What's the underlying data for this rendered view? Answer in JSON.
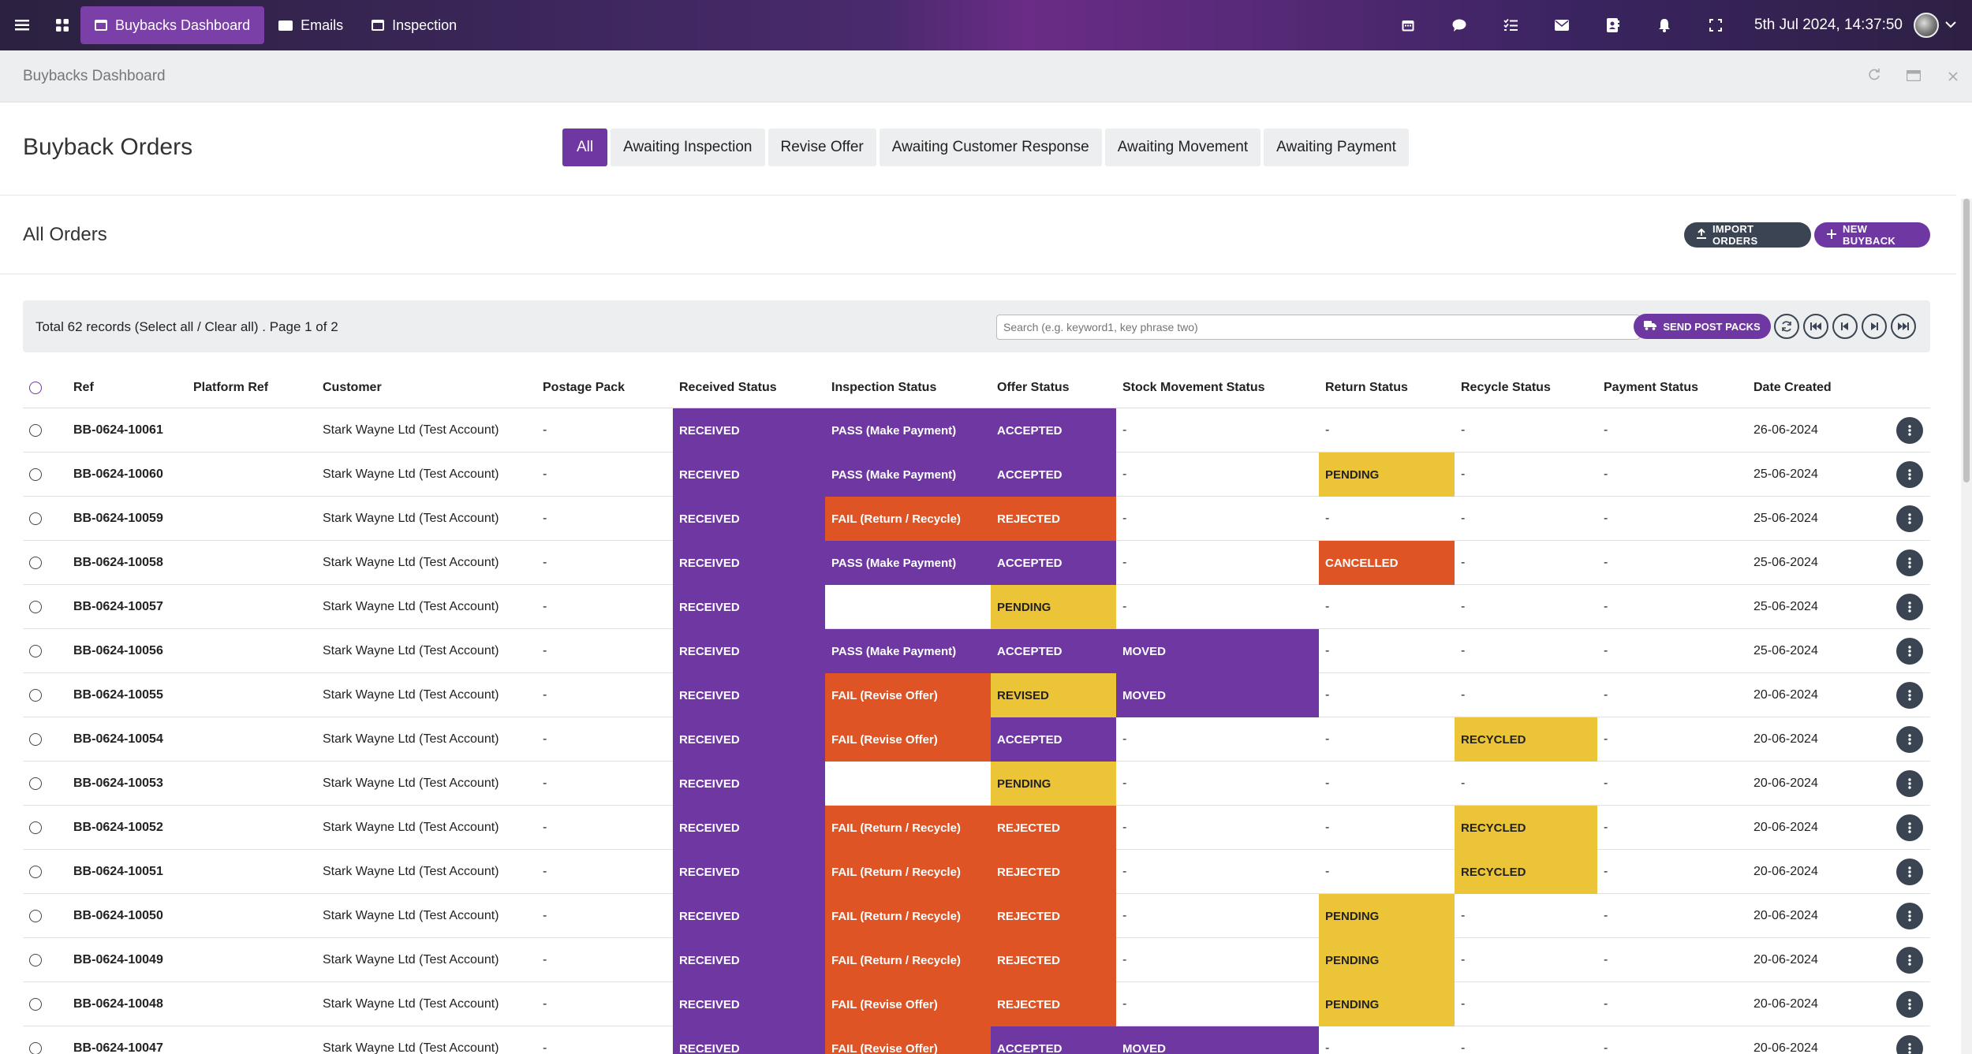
{
  "topbar": {
    "tabs": [
      {
        "label": "Buybacks Dashboard",
        "icon": "window-icon",
        "active": true
      },
      {
        "label": "Emails",
        "icon": "mail-icon",
        "active": false
      },
      {
        "label": "Inspection",
        "icon": "window-icon",
        "active": false
      }
    ],
    "datetime": "5th Jul 2024, 14:37:50",
    "right_icons": [
      "calendar-icon",
      "chat-icon",
      "task-list-icon",
      "mail-icon",
      "contacts-icon",
      "bell-icon",
      "fullscreen-icon"
    ]
  },
  "subheader": {
    "title": "Buybacks Dashboard"
  },
  "header": {
    "title": "Buyback Orders",
    "filters": [
      "All",
      "Awaiting Inspection",
      "Revise Offer",
      "Awaiting Customer Response",
      "Awaiting Movement",
      "Awaiting Payment"
    ]
  },
  "all_orders": {
    "title": "All Orders",
    "import_label": "IMPORT ORDERS",
    "new_label": "NEW BUYBACK"
  },
  "toolbar": {
    "total_prefix": "Total 62 records (",
    "select_all": "Select all",
    "separator": " / ",
    "clear_all": "Clear all",
    "total_suffix": ") . Page 1 of 2",
    "search_placeholder": "Search (e.g. keyword1, key phrase two)",
    "send_label": "SEND POST PACKS"
  },
  "colors": {
    "purple": "#6f37a2",
    "orange": "#df5424",
    "yellow": "#ecc437",
    "dark": "#3b4452"
  },
  "columns": [
    "Ref",
    "Platform Ref",
    "Customer",
    "Postage Pack",
    "Received Status",
    "Inspection Status",
    "Offer Status",
    "Stock Movement Status",
    "Return Status",
    "Recycle Status",
    "Payment Status",
    "Date Created"
  ],
  "rows": [
    {
      "ref": "BB-0624-10061",
      "platform": "",
      "customer": "Stark Wayne Ltd (Test Account)",
      "postage": "-",
      "received": "RECEIVED",
      "inspection": "PASS (Make Payment)",
      "offer": "ACCEPTED",
      "stock": "-",
      "return": "-",
      "recycle": "-",
      "payment": "-",
      "date": "26-06-2024"
    },
    {
      "ref": "BB-0624-10060",
      "platform": "",
      "customer": "Stark Wayne Ltd (Test Account)",
      "postage": "-",
      "received": "RECEIVED",
      "inspection": "PASS (Make Payment)",
      "offer": "ACCEPTED",
      "stock": "-",
      "return": "PENDING",
      "recycle": "-",
      "payment": "-",
      "date": "25-06-2024"
    },
    {
      "ref": "BB-0624-10059",
      "platform": "",
      "customer": "Stark Wayne Ltd (Test Account)",
      "postage": "-",
      "received": "RECEIVED",
      "inspection": "FAIL (Return / Recycle)",
      "offer": "REJECTED",
      "stock": "-",
      "return": "-",
      "recycle": "-",
      "payment": "-",
      "date": "25-06-2024"
    },
    {
      "ref": "BB-0624-10058",
      "platform": "",
      "customer": "Stark Wayne Ltd (Test Account)",
      "postage": "-",
      "received": "RECEIVED",
      "inspection": "PASS (Make Payment)",
      "offer": "ACCEPTED",
      "stock": "-",
      "return": "CANCELLED",
      "recycle": "-",
      "payment": "-",
      "date": "25-06-2024"
    },
    {
      "ref": "BB-0624-10057",
      "platform": "",
      "customer": "Stark Wayne Ltd (Test Account)",
      "postage": "-",
      "received": "RECEIVED",
      "inspection": "",
      "offer": "PENDING",
      "stock": "-",
      "return": "-",
      "recycle": "-",
      "payment": "-",
      "date": "25-06-2024"
    },
    {
      "ref": "BB-0624-10056",
      "platform": "",
      "customer": "Stark Wayne Ltd (Test Account)",
      "postage": "-",
      "received": "RECEIVED",
      "inspection": "PASS (Make Payment)",
      "offer": "ACCEPTED",
      "stock": "MOVED",
      "return": "-",
      "recycle": "-",
      "payment": "-",
      "date": "25-06-2024"
    },
    {
      "ref": "BB-0624-10055",
      "platform": "",
      "customer": "Stark Wayne Ltd (Test Account)",
      "postage": "-",
      "received": "RECEIVED",
      "inspection": "FAIL (Revise Offer)",
      "offer": "REVISED",
      "stock": "MOVED",
      "return": "-",
      "recycle": "-",
      "payment": "-",
      "date": "20-06-2024"
    },
    {
      "ref": "BB-0624-10054",
      "platform": "",
      "customer": "Stark Wayne Ltd (Test Account)",
      "postage": "-",
      "received": "RECEIVED",
      "inspection": "FAIL (Revise Offer)",
      "offer": "ACCEPTED",
      "stock": "-",
      "return": "-",
      "recycle": "RECYCLED",
      "payment": "-",
      "date": "20-06-2024"
    },
    {
      "ref": "BB-0624-10053",
      "platform": "",
      "customer": "Stark Wayne Ltd (Test Account)",
      "postage": "-",
      "received": "RECEIVED",
      "inspection": "",
      "offer": "PENDING",
      "stock": "-",
      "return": "-",
      "recycle": "-",
      "payment": "-",
      "date": "20-06-2024"
    },
    {
      "ref": "BB-0624-10052",
      "platform": "",
      "customer": "Stark Wayne Ltd (Test Account)",
      "postage": "-",
      "received": "RECEIVED",
      "inspection": "FAIL (Return / Recycle)",
      "offer": "REJECTED",
      "stock": "-",
      "return": "-",
      "recycle": "RECYCLED",
      "payment": "-",
      "date": "20-06-2024"
    },
    {
      "ref": "BB-0624-10051",
      "platform": "",
      "customer": "Stark Wayne Ltd (Test Account)",
      "postage": "-",
      "received": "RECEIVED",
      "inspection": "FAIL (Return / Recycle)",
      "offer": "REJECTED",
      "stock": "-",
      "return": "-",
      "recycle": "RECYCLED",
      "payment": "-",
      "date": "20-06-2024"
    },
    {
      "ref": "BB-0624-10050",
      "platform": "",
      "customer": "Stark Wayne Ltd (Test Account)",
      "postage": "-",
      "received": "RECEIVED",
      "inspection": "FAIL (Return / Recycle)",
      "offer": "REJECTED",
      "stock": "-",
      "return": "PENDING",
      "recycle": "-",
      "payment": "-",
      "date": "20-06-2024"
    },
    {
      "ref": "BB-0624-10049",
      "platform": "",
      "customer": "Stark Wayne Ltd (Test Account)",
      "postage": "-",
      "received": "RECEIVED",
      "inspection": "FAIL (Return / Recycle)",
      "offer": "REJECTED",
      "stock": "-",
      "return": "PENDING",
      "recycle": "-",
      "payment": "-",
      "date": "20-06-2024"
    },
    {
      "ref": "BB-0624-10048",
      "platform": "",
      "customer": "Stark Wayne Ltd (Test Account)",
      "postage": "-",
      "received": "RECEIVED",
      "inspection": "FAIL (Revise Offer)",
      "offer": "REJECTED",
      "stock": "-",
      "return": "PENDING",
      "recycle": "-",
      "payment": "-",
      "date": "20-06-2024"
    },
    {
      "ref": "BB-0624-10047",
      "platform": "",
      "customer": "Stark Wayne Ltd (Test Account)",
      "postage": "-",
      "received": "RECEIVED",
      "inspection": "FAIL (Revise Offer)",
      "offer": "ACCEPTED",
      "stock": "MOVED",
      "return": "-",
      "recycle": "-",
      "payment": "-",
      "date": "20-06-2024"
    }
  ]
}
